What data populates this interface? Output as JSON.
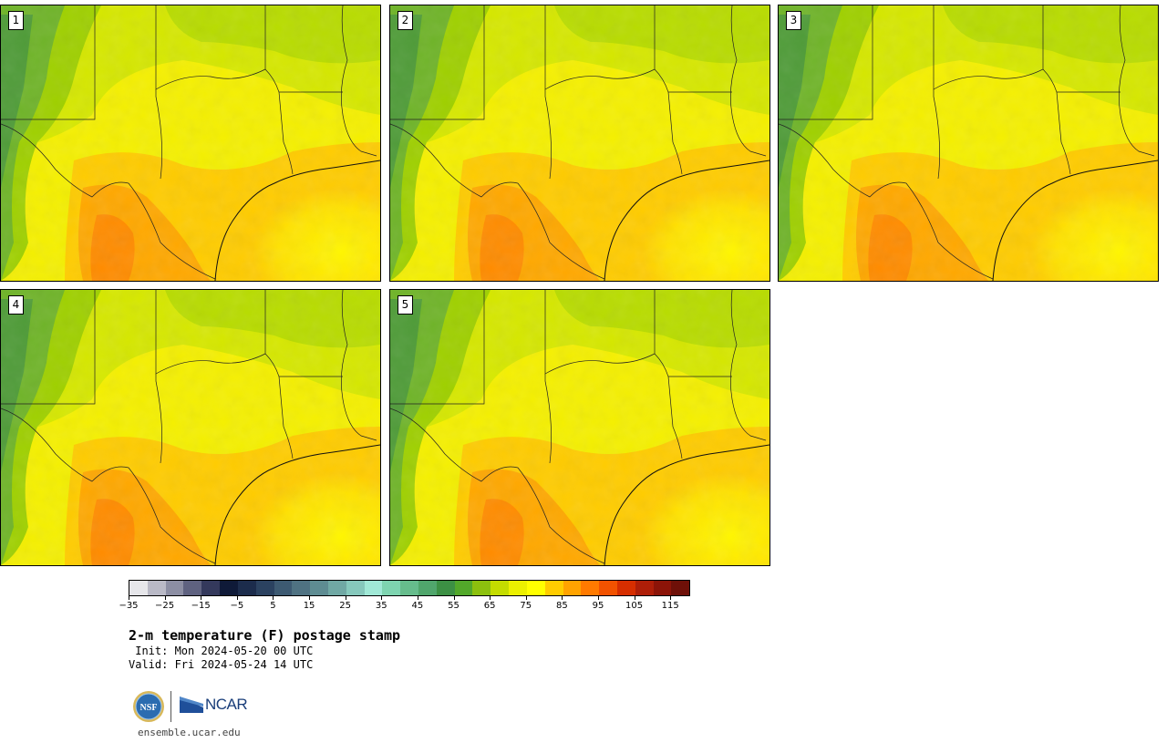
{
  "panels": [
    {
      "label": "1"
    },
    {
      "label": "2"
    },
    {
      "label": "3"
    },
    {
      "label": "4"
    },
    {
      "label": "5"
    }
  ],
  "colorbar": {
    "colors": [
      "#e6e6ea",
      "#b9b9c6",
      "#8c8ea3",
      "#5f6280",
      "#34395c",
      "#0f1a38",
      "#1c2c4c",
      "#2b4260",
      "#3d5a72",
      "#4f7282",
      "#5e8c92",
      "#70a8a4",
      "#86c8bc",
      "#a0e8d6",
      "#7ed4b0",
      "#66bc8c",
      "#50a66c",
      "#3c9044",
      "#52a82a",
      "#8cc00e",
      "#c4dc00",
      "#ecf000",
      "#ffff00",
      "#ffcc00",
      "#ffa300",
      "#ff7a00",
      "#f25200",
      "#d62e00",
      "#ae1e08",
      "#8c1408",
      "#6e1008"
    ],
    "tick_labels": [
      "−35",
      "−25",
      "−15",
      "−5",
      "5",
      "15",
      "25",
      "35",
      "45",
      "55",
      "65",
      "75",
      "85",
      "95",
      "105",
      "115"
    ]
  },
  "title": "2-m temperature (F) postage stamp",
  "init_line": " Init: Mon 2024-05-20 00 UTC",
  "valid_line": "Valid: Fri 2024-05-24 14 UTC",
  "logos": {
    "nsf": "NSF",
    "ncar": "NCAR"
  },
  "website": "ensemble.ucar.edu"
}
